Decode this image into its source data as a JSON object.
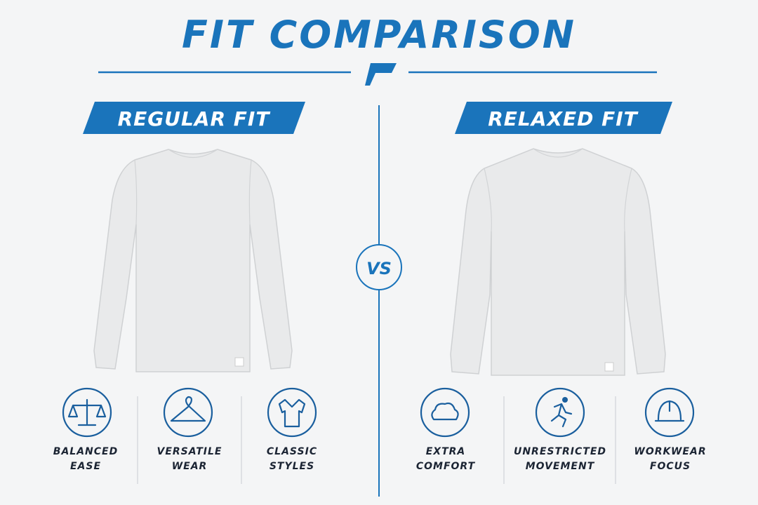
{
  "header": {
    "title": "FIT COMPARISON"
  },
  "vs": "VS",
  "panels": [
    {
      "title": "REGULAR FIT",
      "features": [
        {
          "label": [
            "BALANCED",
            "EASE"
          ]
        },
        {
          "label": [
            "VERSATILE",
            "WEAR"
          ]
        },
        {
          "label": [
            "CLASSIC",
            "STYLES"
          ]
        }
      ]
    },
    {
      "title": "RELAXED FIT",
      "features": [
        {
          "label": [
            "EXTRA",
            "COMFORT"
          ]
        },
        {
          "label": [
            "UNRESTRICTED",
            "MOVEMENT"
          ]
        },
        {
          "label": [
            "WORKWEAR",
            "FOCUS"
          ]
        }
      ]
    }
  ]
}
